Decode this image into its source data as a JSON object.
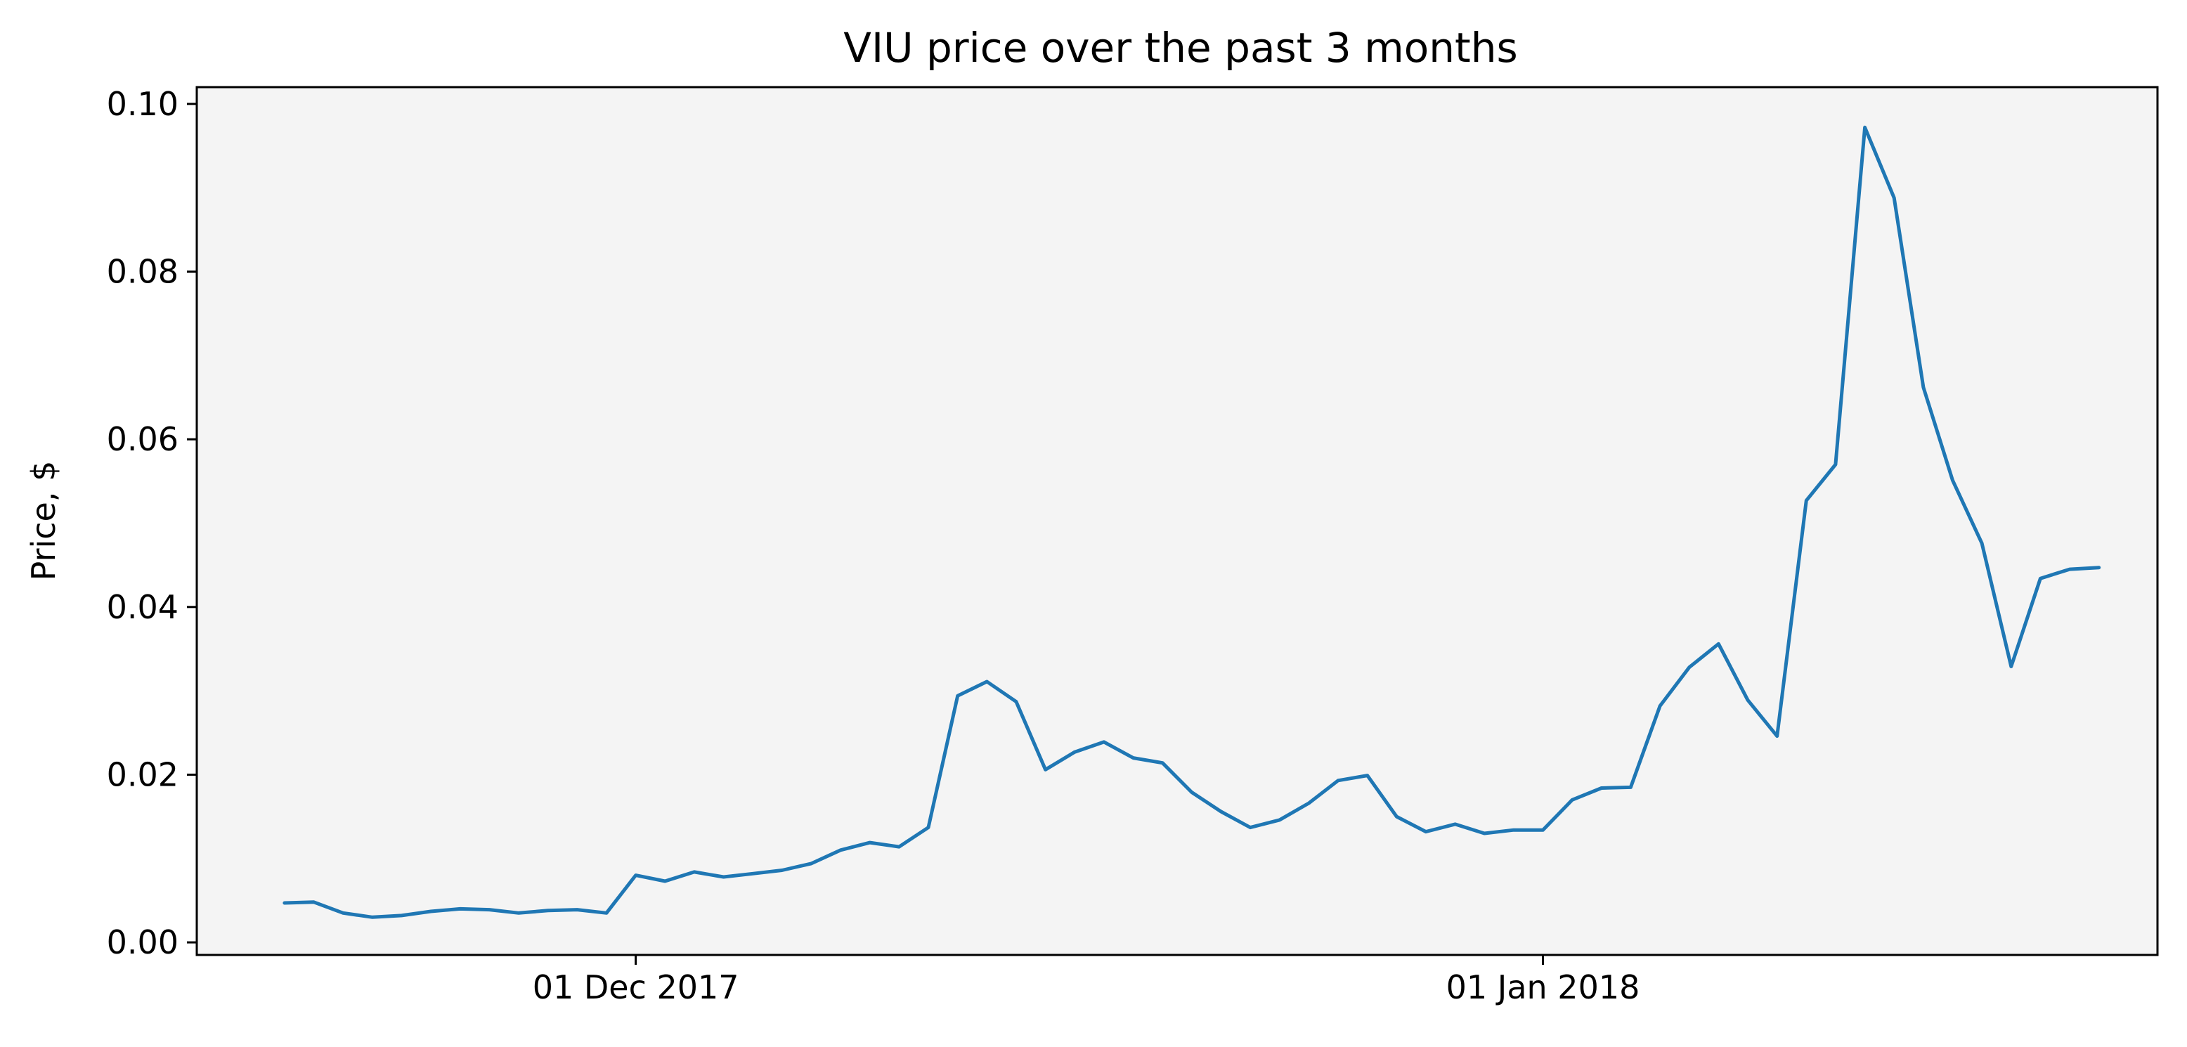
{
  "chart_data": {
    "type": "line",
    "title": "VIU price over the past 3 months",
    "xlabel": "",
    "ylabel": "Price, $",
    "x_start": "2017-11-19",
    "x_step_days": 1,
    "xticks": [
      {
        "date": "2017-12-01",
        "label": "01 Dec 2017"
      },
      {
        "date": "2018-01-01",
        "label": "01 Jan 2018"
      }
    ],
    "xlim": [
      "2017-11-16",
      "2018-01-22"
    ],
    "ylim": [
      -0.0015,
      0.102
    ],
    "yticks": [
      {
        "value": 0.0,
        "label": "0.00"
      },
      {
        "value": 0.02,
        "label": "0.02"
      },
      {
        "value": 0.04,
        "label": "0.04"
      },
      {
        "value": 0.06,
        "label": "0.06"
      },
      {
        "value": 0.08,
        "label": "0.08"
      },
      {
        "value": 0.1,
        "label": "0.10"
      }
    ],
    "grid": false,
    "background": "#f4f4f4",
    "series": [
      {
        "color": "#1f77b4",
        "values": [
          0.0047,
          0.0048,
          0.0035,
          0.003,
          0.0032,
          0.0037,
          0.004,
          0.0039,
          0.0035,
          0.0038,
          0.0039,
          0.0035,
          0.008,
          0.0073,
          0.0084,
          0.0078,
          0.0082,
          0.0086,
          0.0094,
          0.011,
          0.0119,
          0.0114,
          0.0137,
          0.0294,
          0.0311,
          0.0287,
          0.0206,
          0.0227,
          0.0239,
          0.022,
          0.0214,
          0.0179,
          0.0156,
          0.0137,
          0.0146,
          0.0166,
          0.0193,
          0.0199,
          0.015,
          0.0132,
          0.0141,
          0.013,
          0.0134,
          0.0134,
          0.017,
          0.0184,
          0.0185,
          0.0282,
          0.0328,
          0.0356,
          0.0289,
          0.0246,
          0.0527,
          0.057,
          0.0972,
          0.0888,
          0.0662,
          0.0551,
          0.0476,
          0.0329,
          0.0434,
          0.0445,
          0.0447
        ]
      }
    ]
  }
}
